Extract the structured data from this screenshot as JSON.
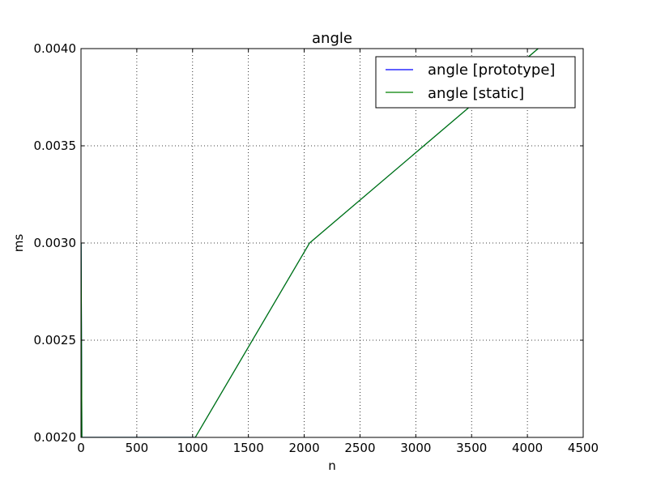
{
  "chart_data": {
    "type": "line",
    "title": "angle",
    "xlabel": "n",
    "ylabel": "ms",
    "xlim": [
      0,
      4500
    ],
    "ylim": [
      0.002,
      0.004
    ],
    "xticks": [
      "0",
      "500",
      "1000",
      "1500",
      "2000",
      "2500",
      "3000",
      "3500",
      "4000",
      "4500"
    ],
    "yticks": [
      "0.0020",
      "0.0025",
      "0.0030",
      "0.0035",
      "0.0040"
    ],
    "grid": true,
    "legend_position": "top-right",
    "series": [
      {
        "name": "angle [prototype]",
        "color": "#0000ff",
        "x": [
          1,
          8,
          16,
          1024,
          2048,
          4096
        ],
        "y": [
          0.003,
          0.002,
          0.002,
          0.002,
          0.003,
          0.004
        ]
      },
      {
        "name": "angle [static]",
        "color": "#008000",
        "x": [
          1,
          8,
          16,
          1024,
          2048,
          4096
        ],
        "y": [
          0.003,
          0.002,
          0.002,
          0.002,
          0.003,
          0.004
        ]
      }
    ]
  }
}
